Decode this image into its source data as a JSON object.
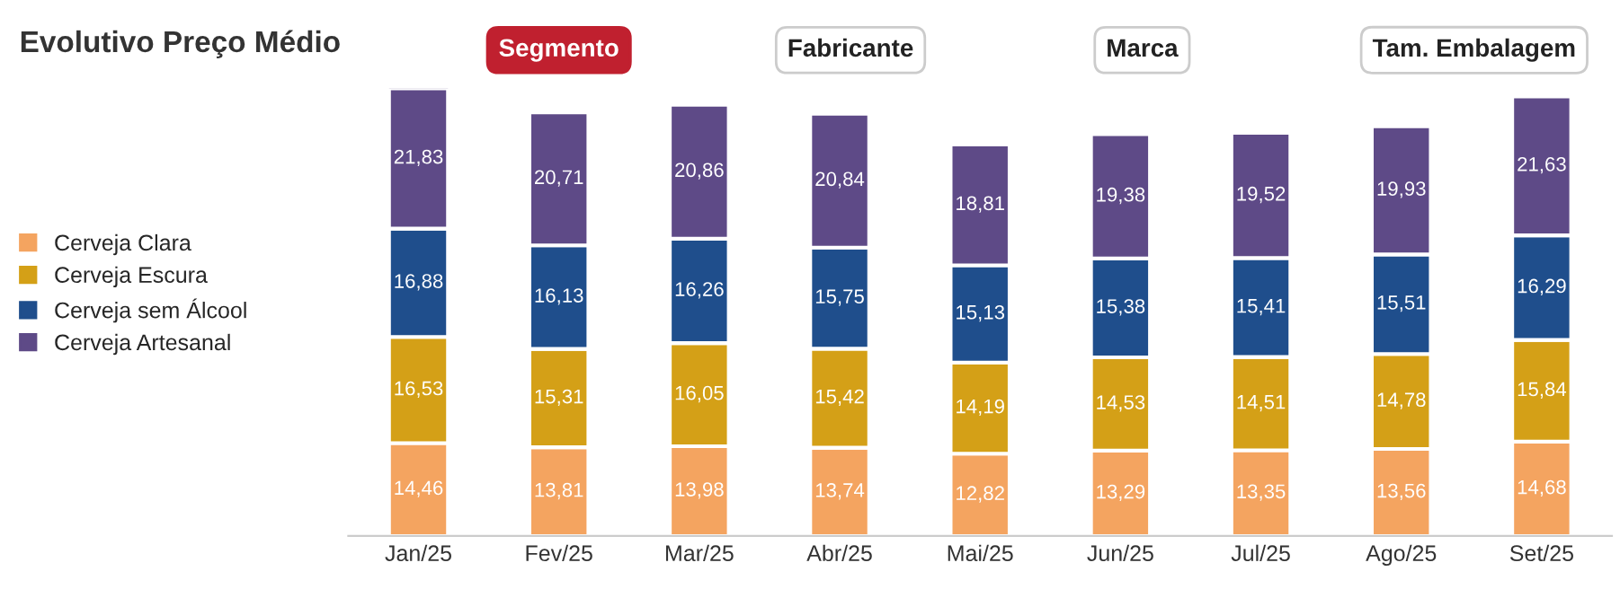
{
  "chart_data": {
    "type": "bar",
    "title": "Evolutivo Preço Médio",
    "annotations": [
      "Segmento",
      "Fabricante",
      "Marca",
      "Tam. Embalagem"
    ],
    "categories": [
      "Jan/25",
      "Fev/25",
      "Mar/25",
      "Abr/25",
      "Mai/25",
      "Jun/25",
      "Jul/25",
      "Ago/25",
      "Set/25"
    ],
    "stacked": true,
    "legend": "left",
    "tick_labels": "x",
    "series": [
      {
        "name": "Cerveja Clara",
        "color": "#f4a460",
        "values": [
          14.46,
          13.81,
          13.98,
          13.74,
          12.82,
          13.29,
          13.35,
          13.56,
          14.68
        ],
        "value_labels": [
          "14,46",
          "13,81",
          "13,98",
          "13,74",
          "12,82",
          "13,29",
          "13,35",
          "13,56",
          "14,68"
        ]
      },
      {
        "name": "Cerveja Escura",
        "color": "#d4a017",
        "values": [
          16.53,
          15.31,
          16.05,
          15.42,
          14.19,
          14.53,
          14.51,
          14.78,
          15.84
        ],
        "value_labels": [
          "16,53",
          "15,31",
          "16,05",
          "15,42",
          "14,19",
          "14,53",
          "14,51",
          "14,78",
          "15,84"
        ]
      },
      {
        "name": "Cerveja sem Álcool",
        "color": "#1f4e8c",
        "values": [
          16.88,
          16.13,
          16.26,
          15.75,
          15.13,
          15.38,
          15.41,
          15.51,
          16.29
        ],
        "value_labels": [
          "16,88",
          "16,13",
          "16,26",
          "15,75",
          "15,13",
          "15,38",
          "15,41",
          "15,51",
          "16,29"
        ]
      },
      {
        "name": "Cerveja Artesanal",
        "color": "#5e4a87",
        "values": [
          21.83,
          20.71,
          20.86,
          20.84,
          18.81,
          19.38,
          19.52,
          19.93,
          21.63
        ],
        "value_labels": [
          "21,83",
          "20,71",
          "20,86",
          "20,84",
          "18,81",
          "19,38",
          "19,52",
          "19,93",
          "21,63"
        ]
      }
    ]
  }
}
